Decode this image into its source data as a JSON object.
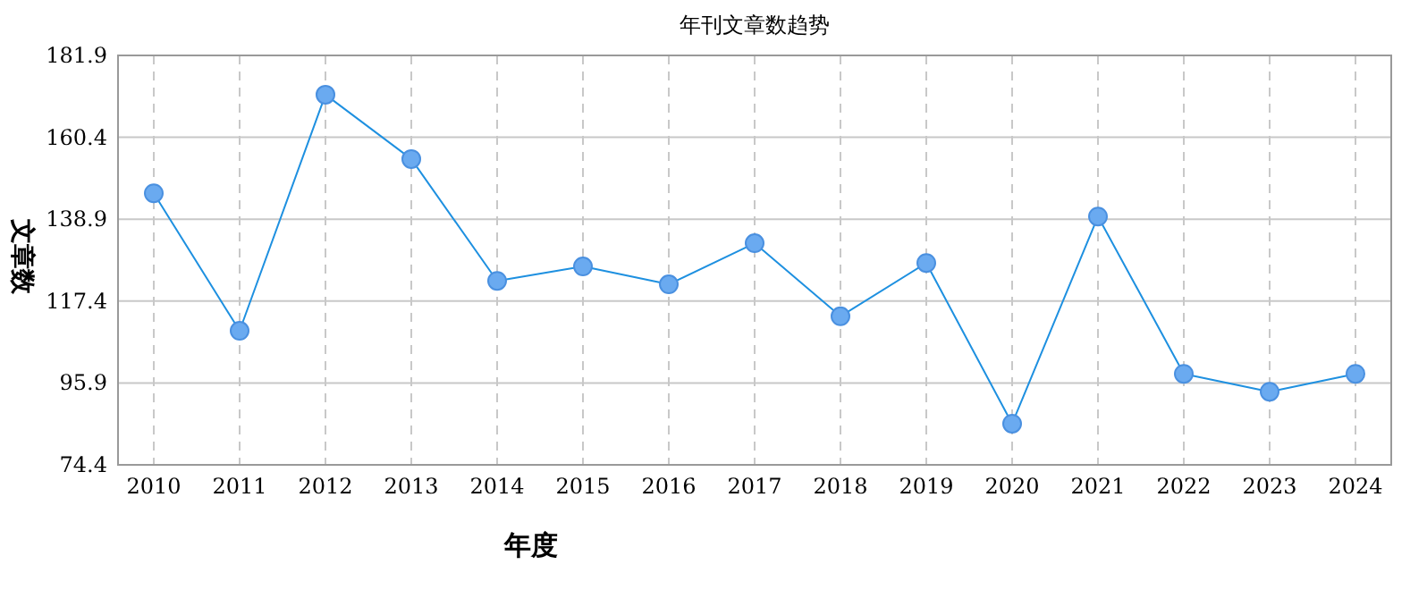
{
  "chart_data": {
    "type": "line",
    "title": "年刊文章数趋势",
    "xlabel": "年度",
    "ylabel": "文章数",
    "categories": [
      "2010",
      "2011",
      "2012",
      "2013",
      "2014",
      "2015",
      "2016",
      "2017",
      "2018",
      "2019",
      "2020",
      "2021",
      "2022",
      "2023",
      "2024"
    ],
    "series": [
      {
        "color": "#1e90e0",
        "values": [
          145.7,
          109.6,
          171.6,
          154.7,
          122.7,
          126.5,
          121.8,
          132.6,
          113.4,
          127.4,
          85.2,
          139.6,
          98.3,
          93.6,
          98.3
        ]
      }
    ],
    "ylim": [
      74.4,
      181.9
    ],
    "yticks": [
      74.4,
      95.9,
      117.4,
      138.9,
      160.4,
      181.9
    ],
    "grid": true,
    "marker": "circle",
    "line_style": "solid"
  }
}
